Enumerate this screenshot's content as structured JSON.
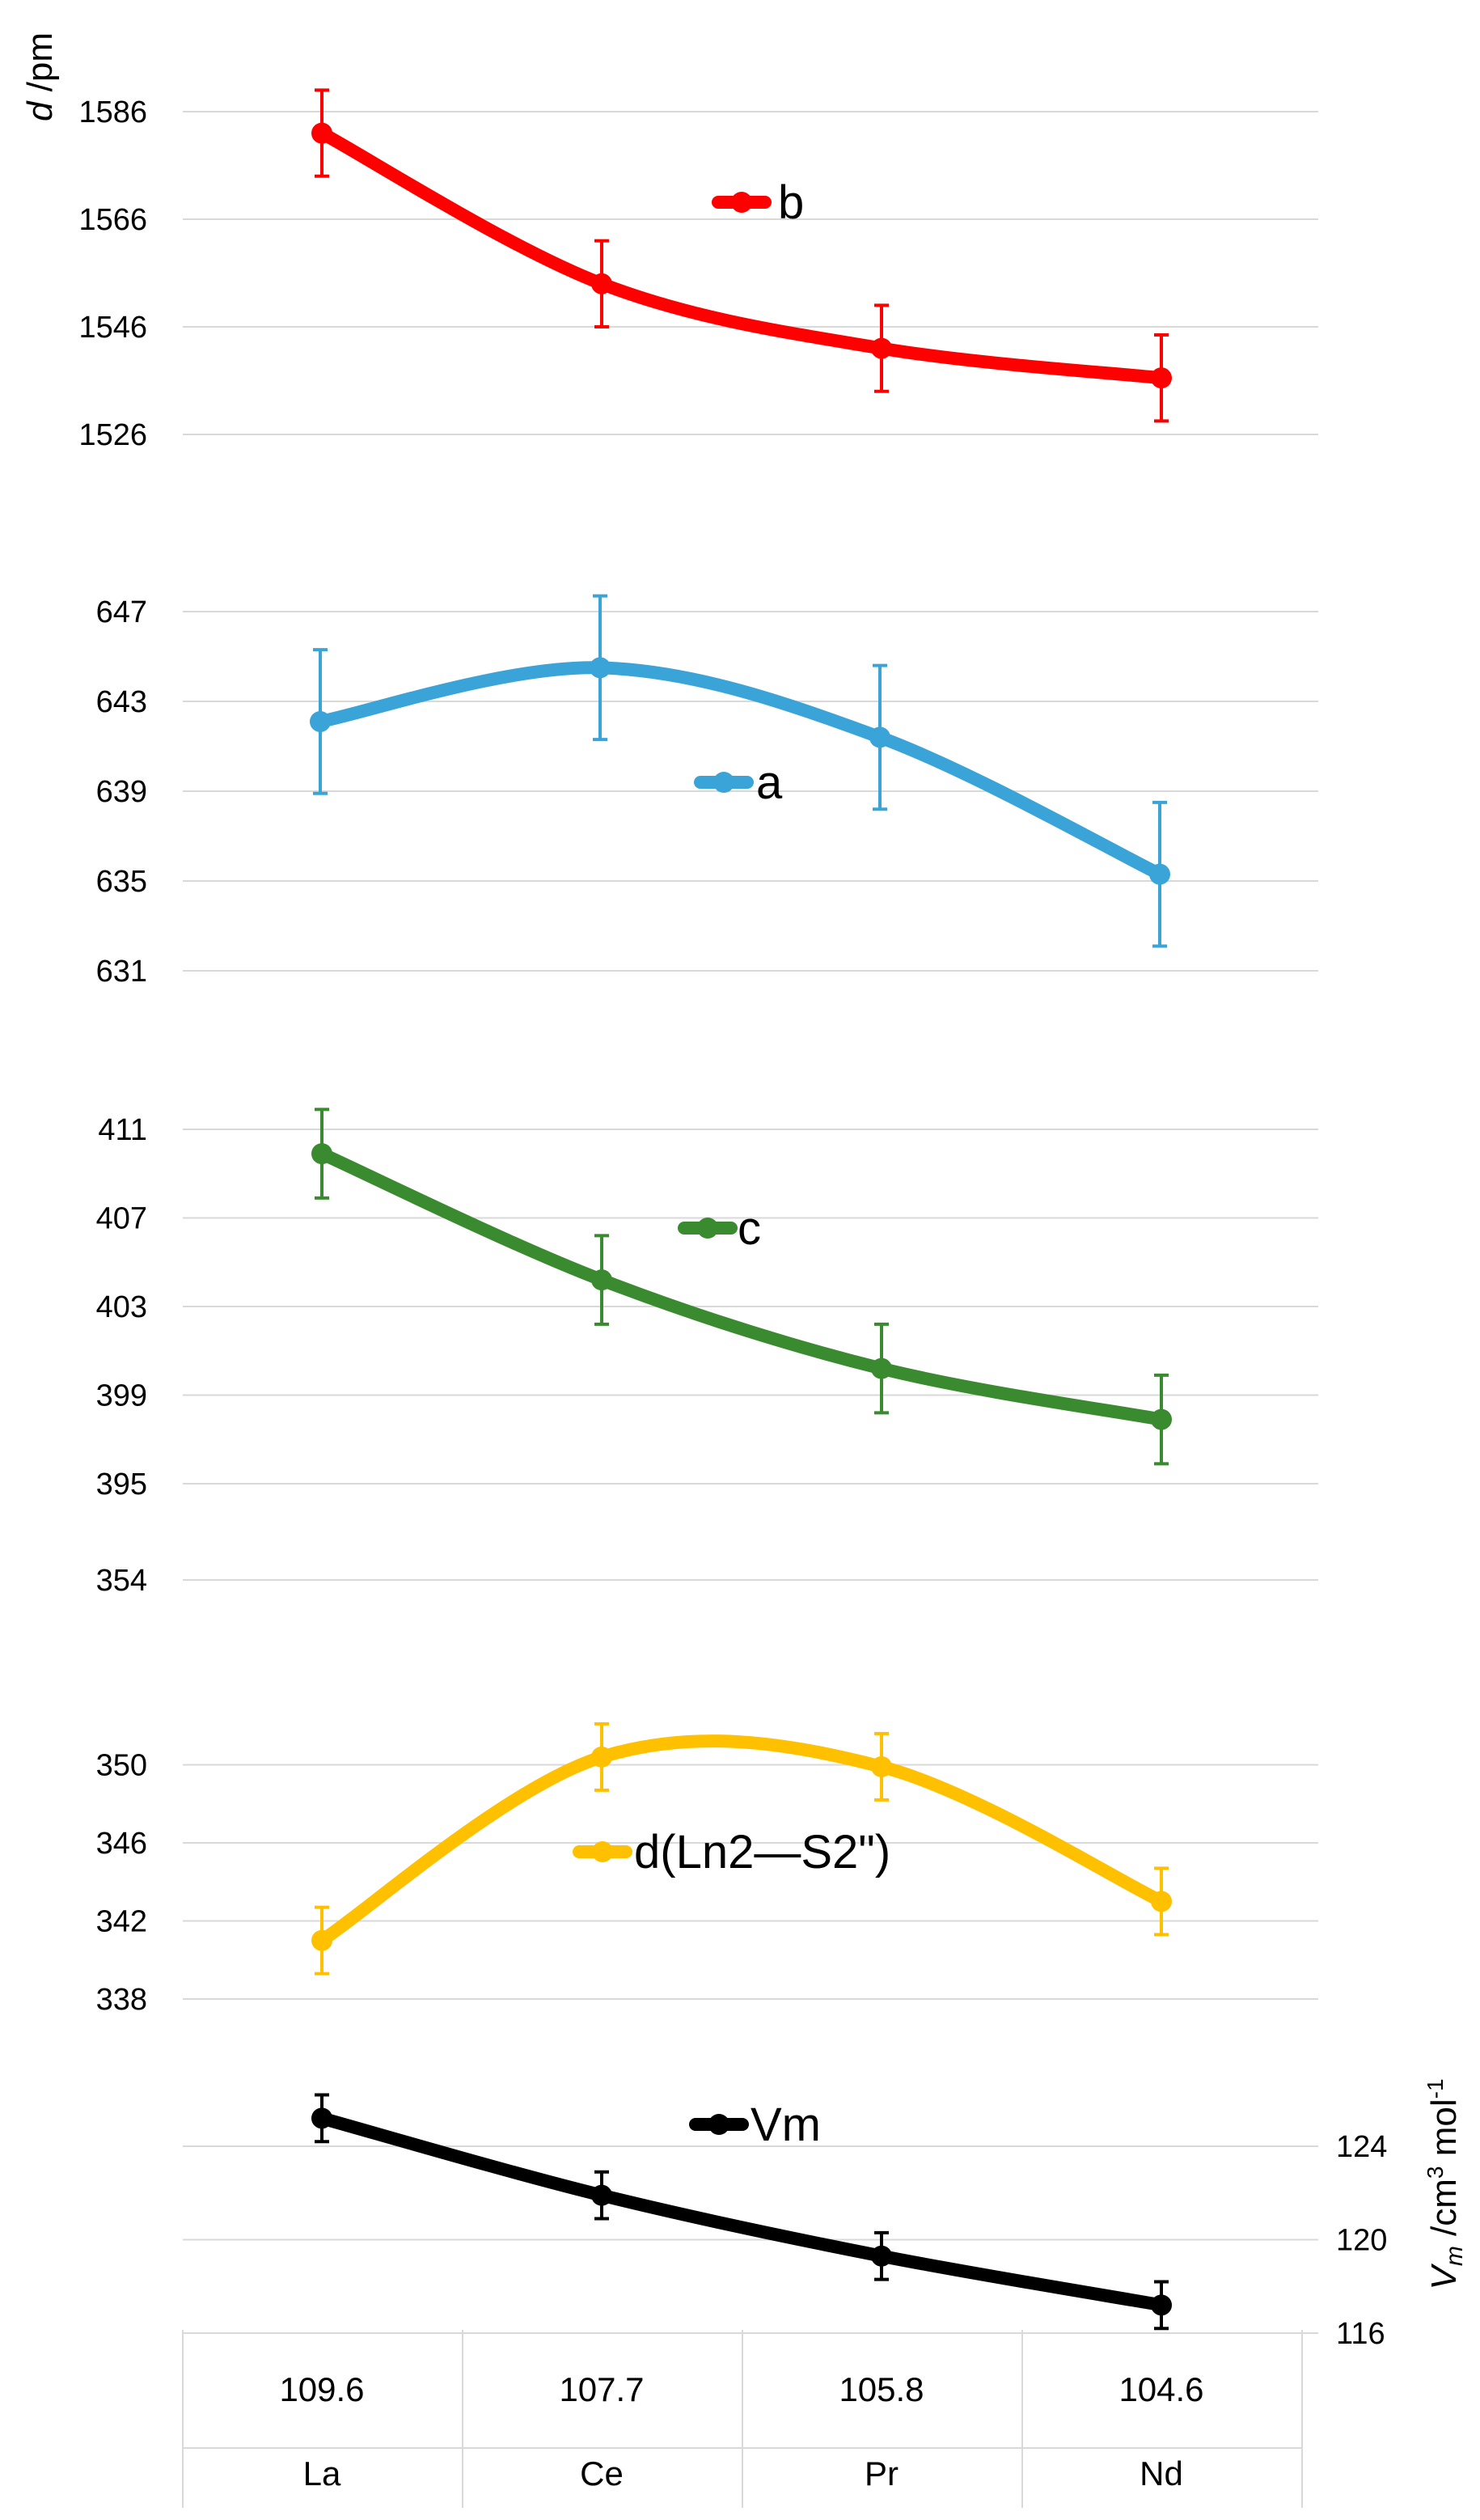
{
  "chart_data": [
    {
      "type": "line",
      "id": "b",
      "legend": "b",
      "color": "#ff0000",
      "ylabel_italic": "d",
      "ylabel_rest": " /pm",
      "yticks": [
        "1586",
        "1566",
        "1546",
        "1526"
      ],
      "ylim": [
        1526,
        1586
      ],
      "values": [
        1582,
        1554,
        1542,
        1536.5
      ],
      "error": [
        8,
        8,
        8,
        8
      ]
    },
    {
      "type": "line",
      "id": "a",
      "legend": "a",
      "color": "#3aa3d8",
      "yticks": [
        "647",
        "643",
        "639",
        "635",
        "631"
      ],
      "ylim": [
        631,
        647
      ],
      "values": [
        642.1,
        644.5,
        641.4,
        635.3
      ],
      "error": [
        3.2,
        3.2,
        3.2,
        3.2
      ]
    },
    {
      "type": "line",
      "id": "c",
      "legend": "c",
      "color": "#3a8a30",
      "yticks": [
        "411",
        "407",
        "403",
        "399",
        "395"
      ],
      "ylim": [
        395,
        411
      ],
      "values": [
        409.9,
        404.2,
        400.2,
        397.9
      ],
      "error": [
        2,
        2,
        2,
        2
      ]
    },
    {
      "type": "line",
      "id": "d",
      "legend": "d(Ln2—S2\")",
      "color": "#ffc000",
      "yticks": [
        "354",
        "350",
        "346",
        "342",
        "338"
      ],
      "ylim": [
        338,
        354
      ],
      "values": [
        341,
        350.4,
        349.9,
        343
      ],
      "error": [
        1.7,
        1.7,
        1.7,
        1.7
      ]
    },
    {
      "type": "line",
      "id": "vm",
      "legend": "Vm",
      "color": "#000000",
      "right_yticks": [
        "124",
        "120",
        "116"
      ],
      "ylim": [
        116,
        124
      ],
      "values": [
        125.2,
        121.9,
        119.3,
        117.2
      ],
      "error": [
        1,
        1,
        1,
        1
      ],
      "ylabel_italic": "V",
      "ylabel_sub": "m",
      "ylabel_rest": " /cm",
      "ylabel_sup": "3",
      "ylabel_tail": " mol",
      "ylabel_sup2": "-1"
    }
  ],
  "table": {
    "radii": [
      "109.6",
      "107.7",
      "105.8",
      "104.6"
    ],
    "elements": [
      "La",
      "Ce",
      "Pr",
      "Nd"
    ]
  }
}
